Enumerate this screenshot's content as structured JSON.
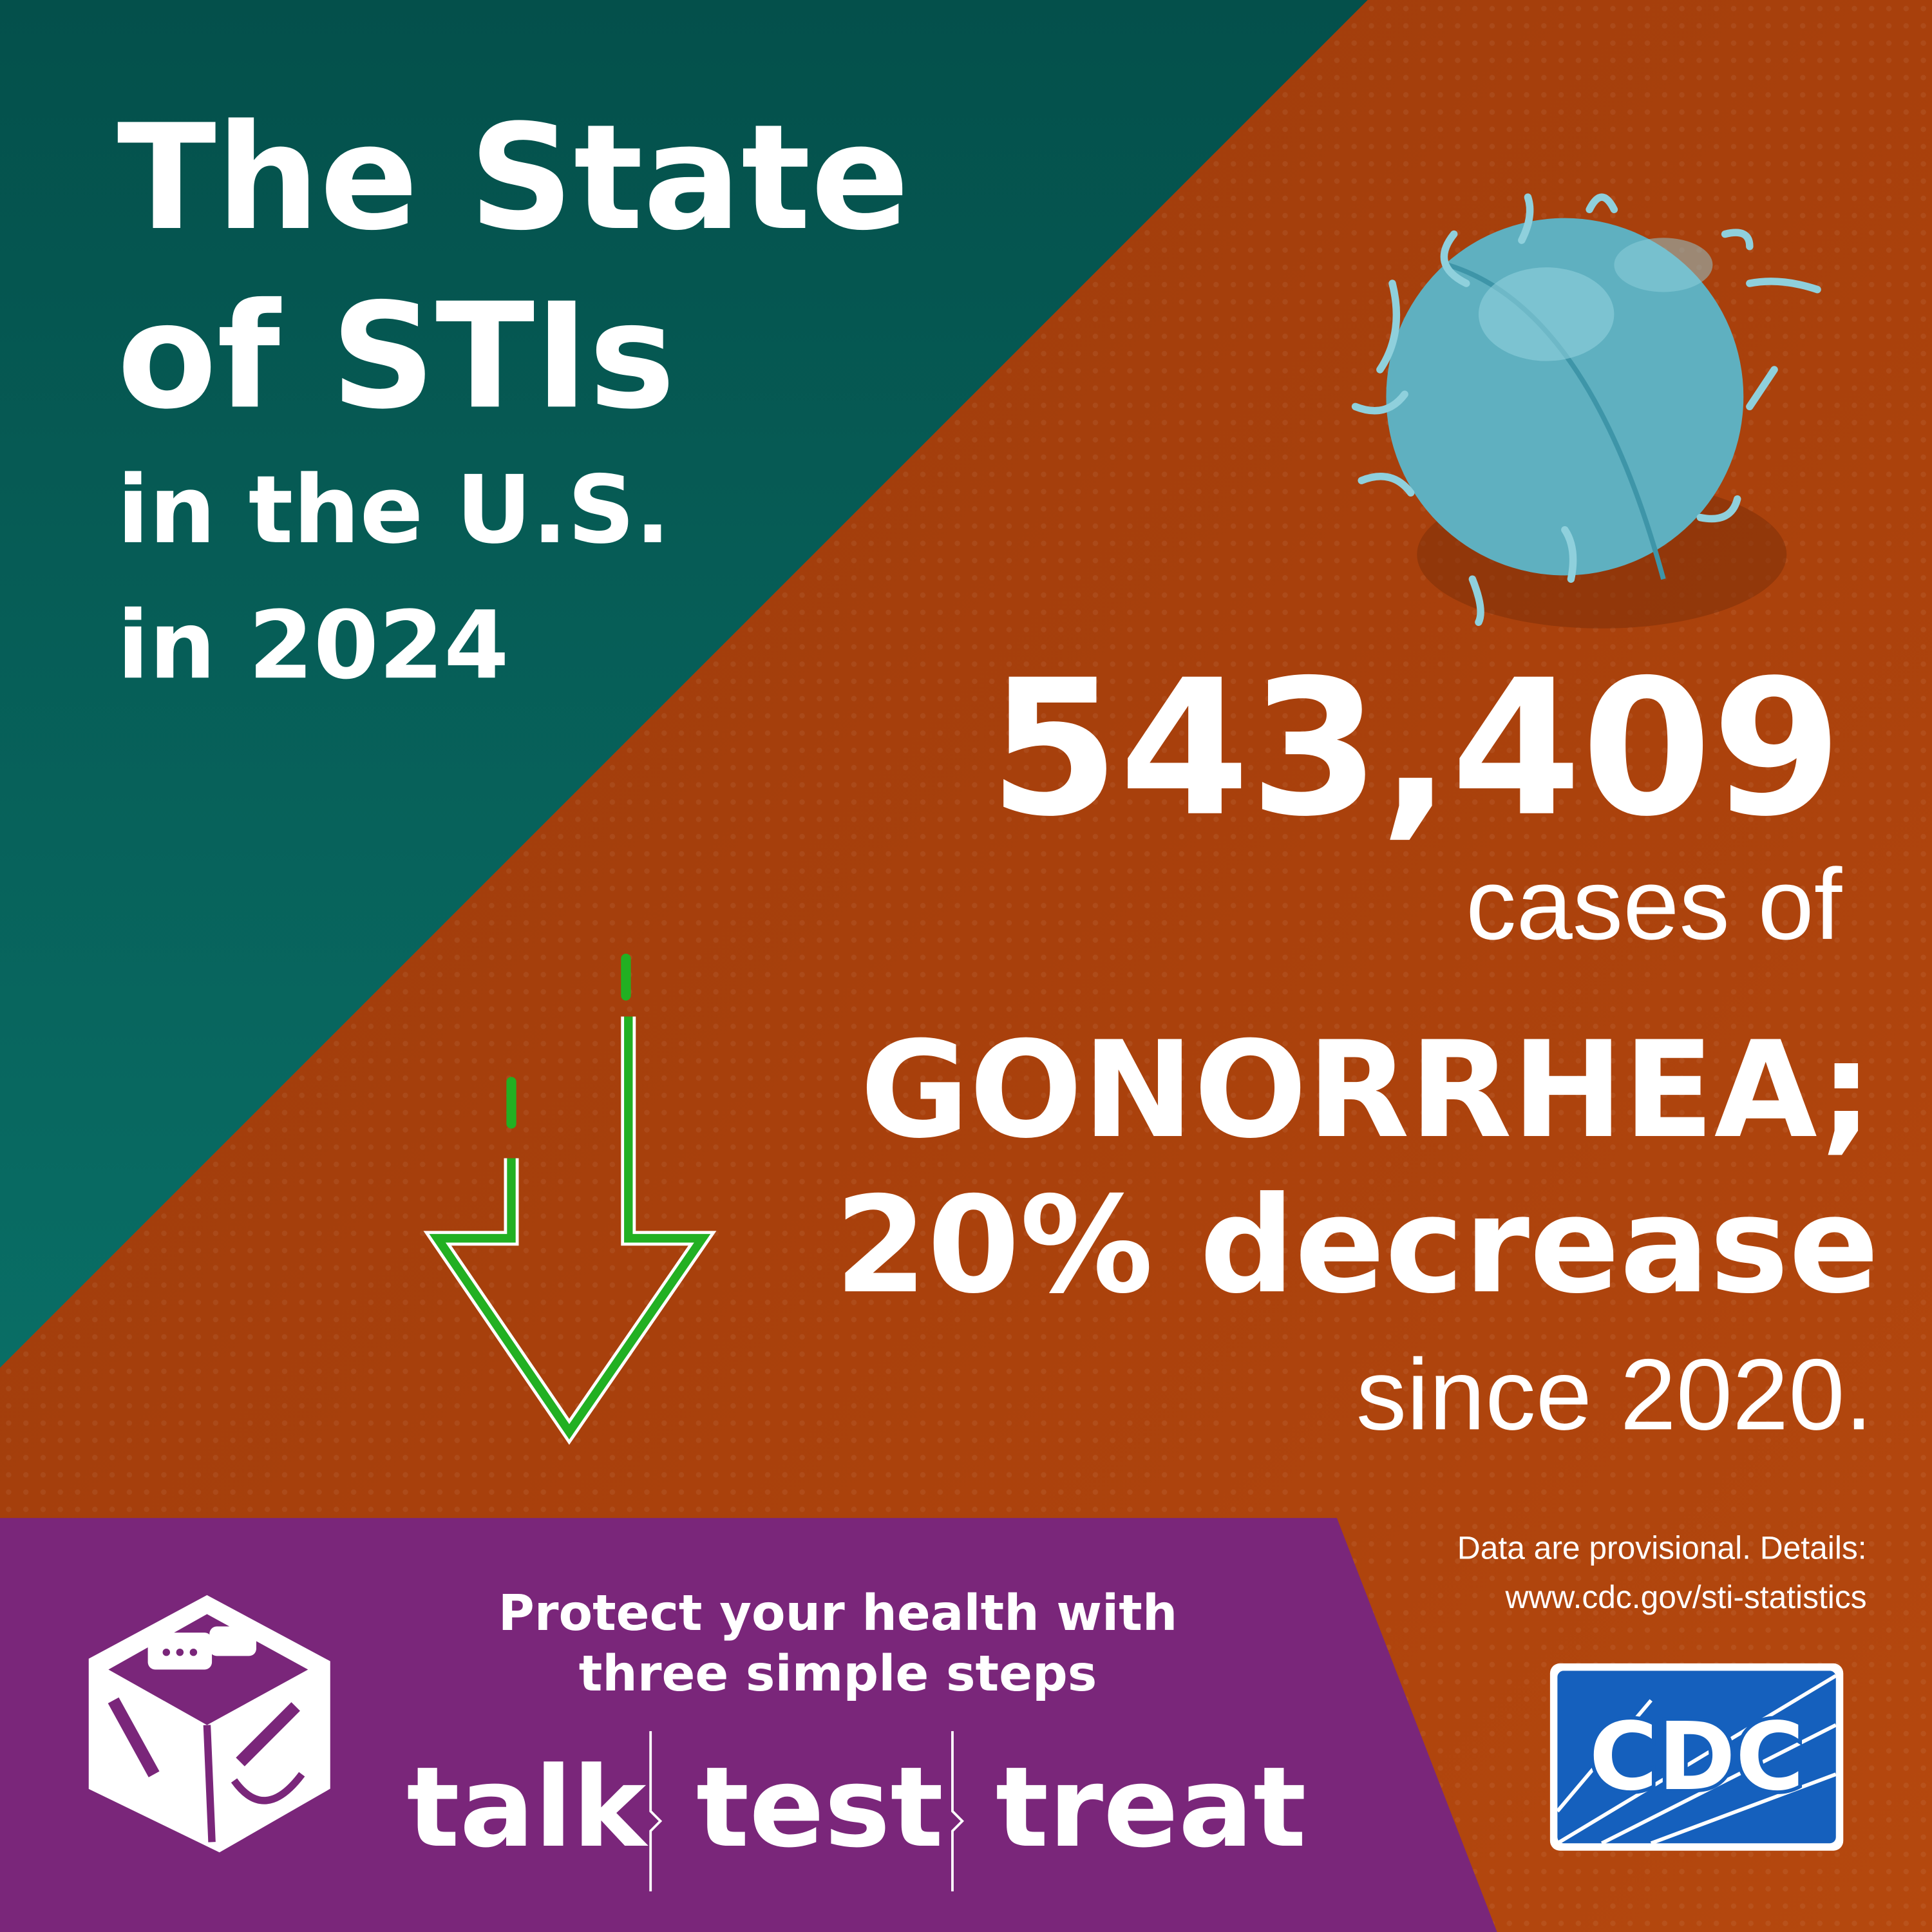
{
  "header": {
    "title": [
      "The State",
      "of STIs",
      "in the U.S.",
      "in 2024"
    ]
  },
  "stat": {
    "count": "543,409",
    "lead": "cases of",
    "disease": "GONORRHEA;",
    "change": "20% decrease",
    "since": "since 2020."
  },
  "footer": {
    "tagline": [
      "Protect your health with",
      "three simple steps"
    ],
    "steps": [
      "talk",
      "test",
      "treat"
    ],
    "note": [
      "Data are provisional. Details:",
      "www.cdc.gov/sti-statistics"
    ],
    "logo": "CDC"
  }
}
